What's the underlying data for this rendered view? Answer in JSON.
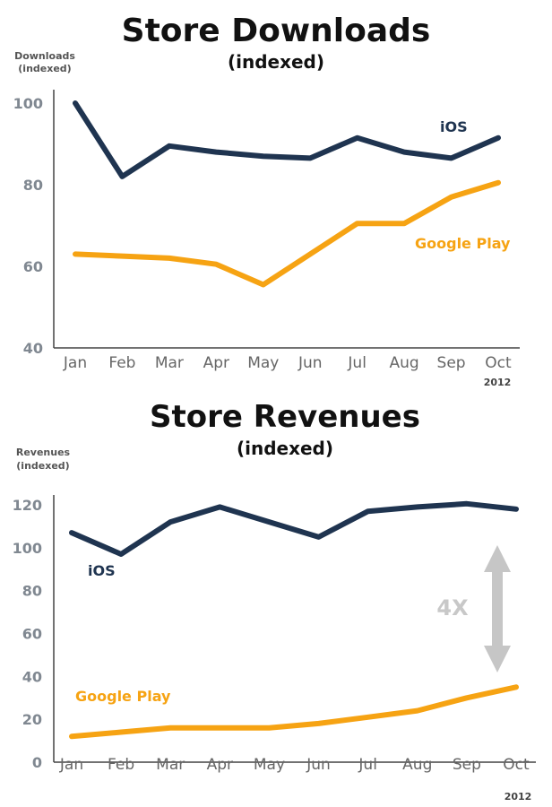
{
  "colors": {
    "ios": "#1f3450",
    "google_play": "#f6a313",
    "axis": "#444444",
    "arrow": "#c6c6c6"
  },
  "chart_data": [
    {
      "type": "line",
      "title": "Store Downloads",
      "subtitle": "(indexed)",
      "ylabel_line1": "Downloads",
      "ylabel_line2": "(indexed)",
      "year_label": "2012",
      "categories": [
        "Jan",
        "Feb",
        "Mar",
        "Apr",
        "May",
        "Jun",
        "Jul",
        "Aug",
        "Sep",
        "Oct"
      ],
      "ylim": [
        40,
        100
      ],
      "yticks": [
        "40",
        "60",
        "80",
        "100"
      ],
      "grid": false,
      "series": [
        {
          "name": "iOS",
          "values": [
            100,
            82,
            89.5,
            88,
            87,
            86.5,
            91.5,
            88,
            86.5,
            91.5
          ]
        },
        {
          "name": "Google Play",
          "values": [
            63,
            62.5,
            62,
            60.5,
            55.5,
            63,
            70.5,
            70.5,
            77,
            80.5
          ]
        }
      ]
    },
    {
      "type": "line",
      "title": "Store Revenues",
      "subtitle": "(indexed)",
      "ylabel_line1": "Revenues",
      "ylabel_line2": "(indexed)",
      "year_label": "2012",
      "categories": [
        "Jan",
        "Feb",
        "Mar",
        "Apr",
        "May",
        "Jun",
        "Jul",
        "Aug",
        "Sep",
        "Oct"
      ],
      "ylim": [
        0,
        120
      ],
      "yticks": [
        "0",
        "20",
        "40",
        "60",
        "80",
        "100",
        "120"
      ],
      "grid": false,
      "annotation": "4X",
      "series": [
        {
          "name": "iOS",
          "values": [
            107,
            97,
            112,
            119,
            112,
            105,
            117,
            119,
            120.5,
            118
          ]
        },
        {
          "name": "Google Play",
          "values": [
            12,
            14,
            16,
            16,
            16,
            18,
            21,
            24,
            30,
            35
          ]
        }
      ]
    }
  ]
}
